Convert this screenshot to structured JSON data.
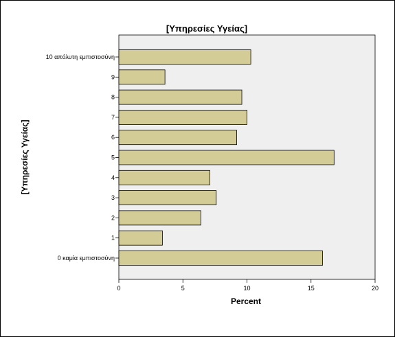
{
  "colors": {
    "bar_fill": "#d4cc96",
    "bar_stroke": "#000000",
    "plot_background": "#efefef"
  },
  "chart_data": {
    "type": "bar",
    "orientation": "horizontal",
    "title": "[Υπηρεσίες Υγείας]",
    "xlabel": "Percent",
    "ylabel": "[Υπηρεσίες Υγείας]",
    "categories": [
      "10 απόλυτη εμπιστοσύνη",
      "9",
      "8",
      "7",
      "6",
      "5",
      "4",
      "3",
      "2",
      "1",
      "0 καμία εμπιστοσύνη"
    ],
    "values": [
      10.3,
      3.6,
      9.6,
      10.0,
      9.2,
      16.8,
      7.1,
      7.6,
      6.4,
      3.4,
      15.9
    ],
    "xlim": [
      0,
      20
    ],
    "xticks": [
      0,
      5,
      10,
      15,
      20
    ],
    "grid": false,
    "legend": "none"
  }
}
